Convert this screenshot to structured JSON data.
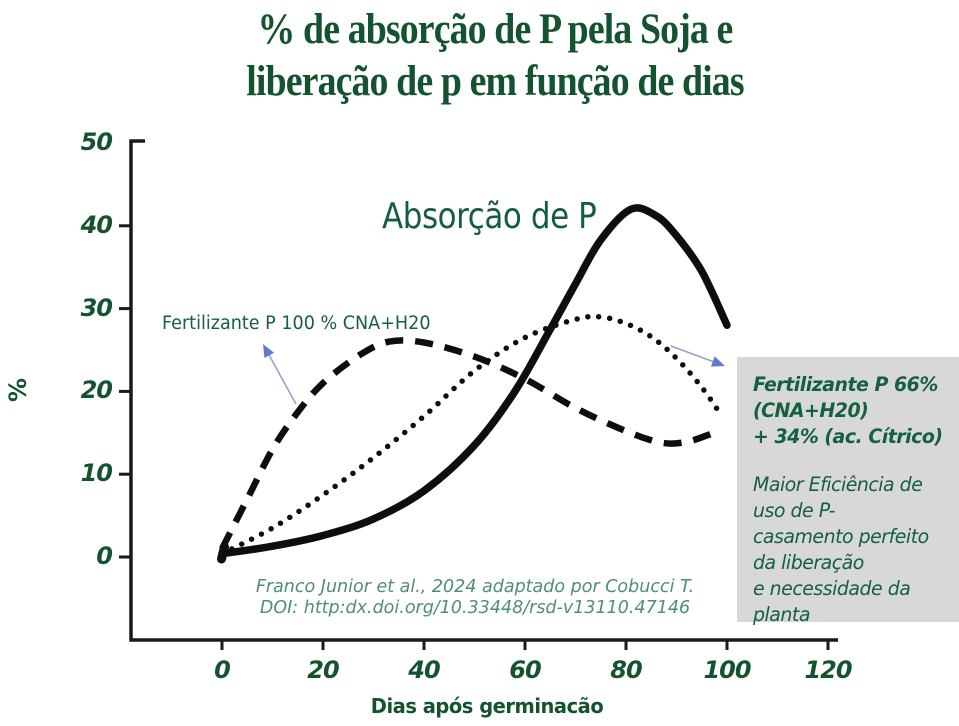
{
  "title": {
    "line1": "% de absorção de P pela Soja e",
    "line2": "liberação de p em função de dias"
  },
  "chart_data": {
    "type": "line",
    "title": "% de absorção de P pela Soja e liberação de p em função de dias",
    "xlabel": "Dias após germinacão",
    "ylabel": "%",
    "xlim": [
      0,
      120
    ],
    "ylim": [
      0,
      50
    ],
    "x_ticks": [
      0,
      20,
      40,
      60,
      80,
      100,
      120
    ],
    "y_ticks": [
      0,
      10,
      20,
      30,
      40,
      50
    ],
    "grid": false,
    "series": [
      {
        "name": "Absorção de P",
        "style": "solid",
        "points": [
          [
            0,
            0.4
          ],
          [
            10,
            1.3
          ],
          [
            20,
            2.6
          ],
          [
            30,
            4.6
          ],
          [
            40,
            8
          ],
          [
            50,
            13.5
          ],
          [
            58,
            20
          ],
          [
            65,
            27.5
          ],
          [
            70,
            33
          ],
          [
            75,
            38.3
          ],
          [
            81,
            42
          ],
          [
            86,
            41.2
          ],
          [
            90,
            38.8
          ],
          [
            95,
            34.5
          ],
          [
            100,
            28
          ]
        ]
      },
      {
        "name": "Fertilizante P 100 % CNA+H20",
        "style": "dashed",
        "points": [
          [
            0,
            1
          ],
          [
            5,
            7
          ],
          [
            10,
            13
          ],
          [
            15,
            17.5
          ],
          [
            20,
            21
          ],
          [
            27,
            24.3
          ],
          [
            33,
            26
          ],
          [
            40,
            25.9
          ],
          [
            50,
            24.2
          ],
          [
            60,
            21.5
          ],
          [
            70,
            18
          ],
          [
            80,
            15.2
          ],
          [
            87,
            13.8
          ],
          [
            92,
            13.9
          ],
          [
            97,
            14.9
          ]
        ]
      },
      {
        "name": "Fertilizante P 66% (CNA+H20) + 34% (ac. Cítrico)",
        "style": "dotted",
        "points": [
          [
            0,
            0.4
          ],
          [
            10,
            3.5
          ],
          [
            20,
            7.5
          ],
          [
            30,
            12
          ],
          [
            40,
            17
          ],
          [
            50,
            22.5
          ],
          [
            60,
            26.5
          ],
          [
            70,
            28.7
          ],
          [
            75,
            29
          ],
          [
            80,
            28.2
          ],
          [
            85,
            26.6
          ],
          [
            90,
            24
          ],
          [
            95,
            20.5
          ],
          [
            99,
            17
          ]
        ]
      }
    ]
  },
  "labels": {
    "absorption": "Absorção de P",
    "dashed_label": "Fertilizante P 100 % CNA+H20"
  },
  "annotation_box": {
    "bold_text": "Fertilizante P 66%\n(CNA+H20)\n+ 34% (ac. Cítrico)",
    "italic_text": "Maior Eficiência de\nuso de P-\ncasamento perfeito\nda liberação\ne necessidade da\nplanta"
  },
  "citation": {
    "line1": "Franco Junior et al., 2024 adaptado por Cobucci T.",
    "line2": "DOI: http:dx.doi.org/10.33448/rsd-v13110.47146"
  },
  "colors": {
    "title_green": "#14532f",
    "label_green": "#155c40",
    "box_text_green": "#14603f",
    "citation_green": "#4f8e75",
    "box_bg": "#d8d8d8",
    "curve_black": "#0e0e0e",
    "axis_black": "#1a1a1a",
    "arrow_line": "#94a3cc",
    "arrow_head": "#5b7cd1"
  }
}
